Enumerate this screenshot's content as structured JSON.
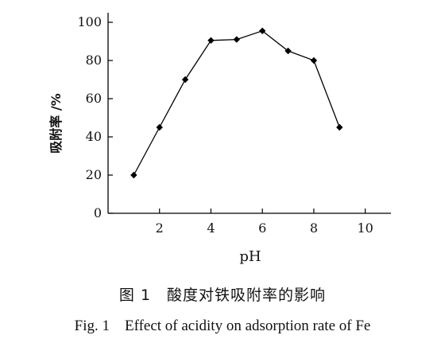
{
  "chart_data": {
    "type": "line",
    "x": [
      1,
      2,
      3,
      4,
      5,
      6,
      7,
      8,
      9
    ],
    "series": [
      {
        "values": [
          20,
          45,
          70,
          90.5,
          91,
          95.5,
          85,
          80,
          45
        ]
      }
    ],
    "xlabel": "pH",
    "ylabel": "吸附率 /%",
    "xlim": [
      0,
      11
    ],
    "ylim": [
      0,
      105
    ],
    "xticks": [
      2,
      4,
      6,
      8,
      10
    ],
    "yticks": [
      0,
      20,
      40,
      60,
      80,
      100
    ],
    "grid": false,
    "marker": "diamond",
    "color": "#000000"
  },
  "caption": {
    "cn": "图 1　酸度对铁吸附率的影响",
    "en": "Fig. 1　Effect of acidity on adsorption rate of Fe"
  }
}
